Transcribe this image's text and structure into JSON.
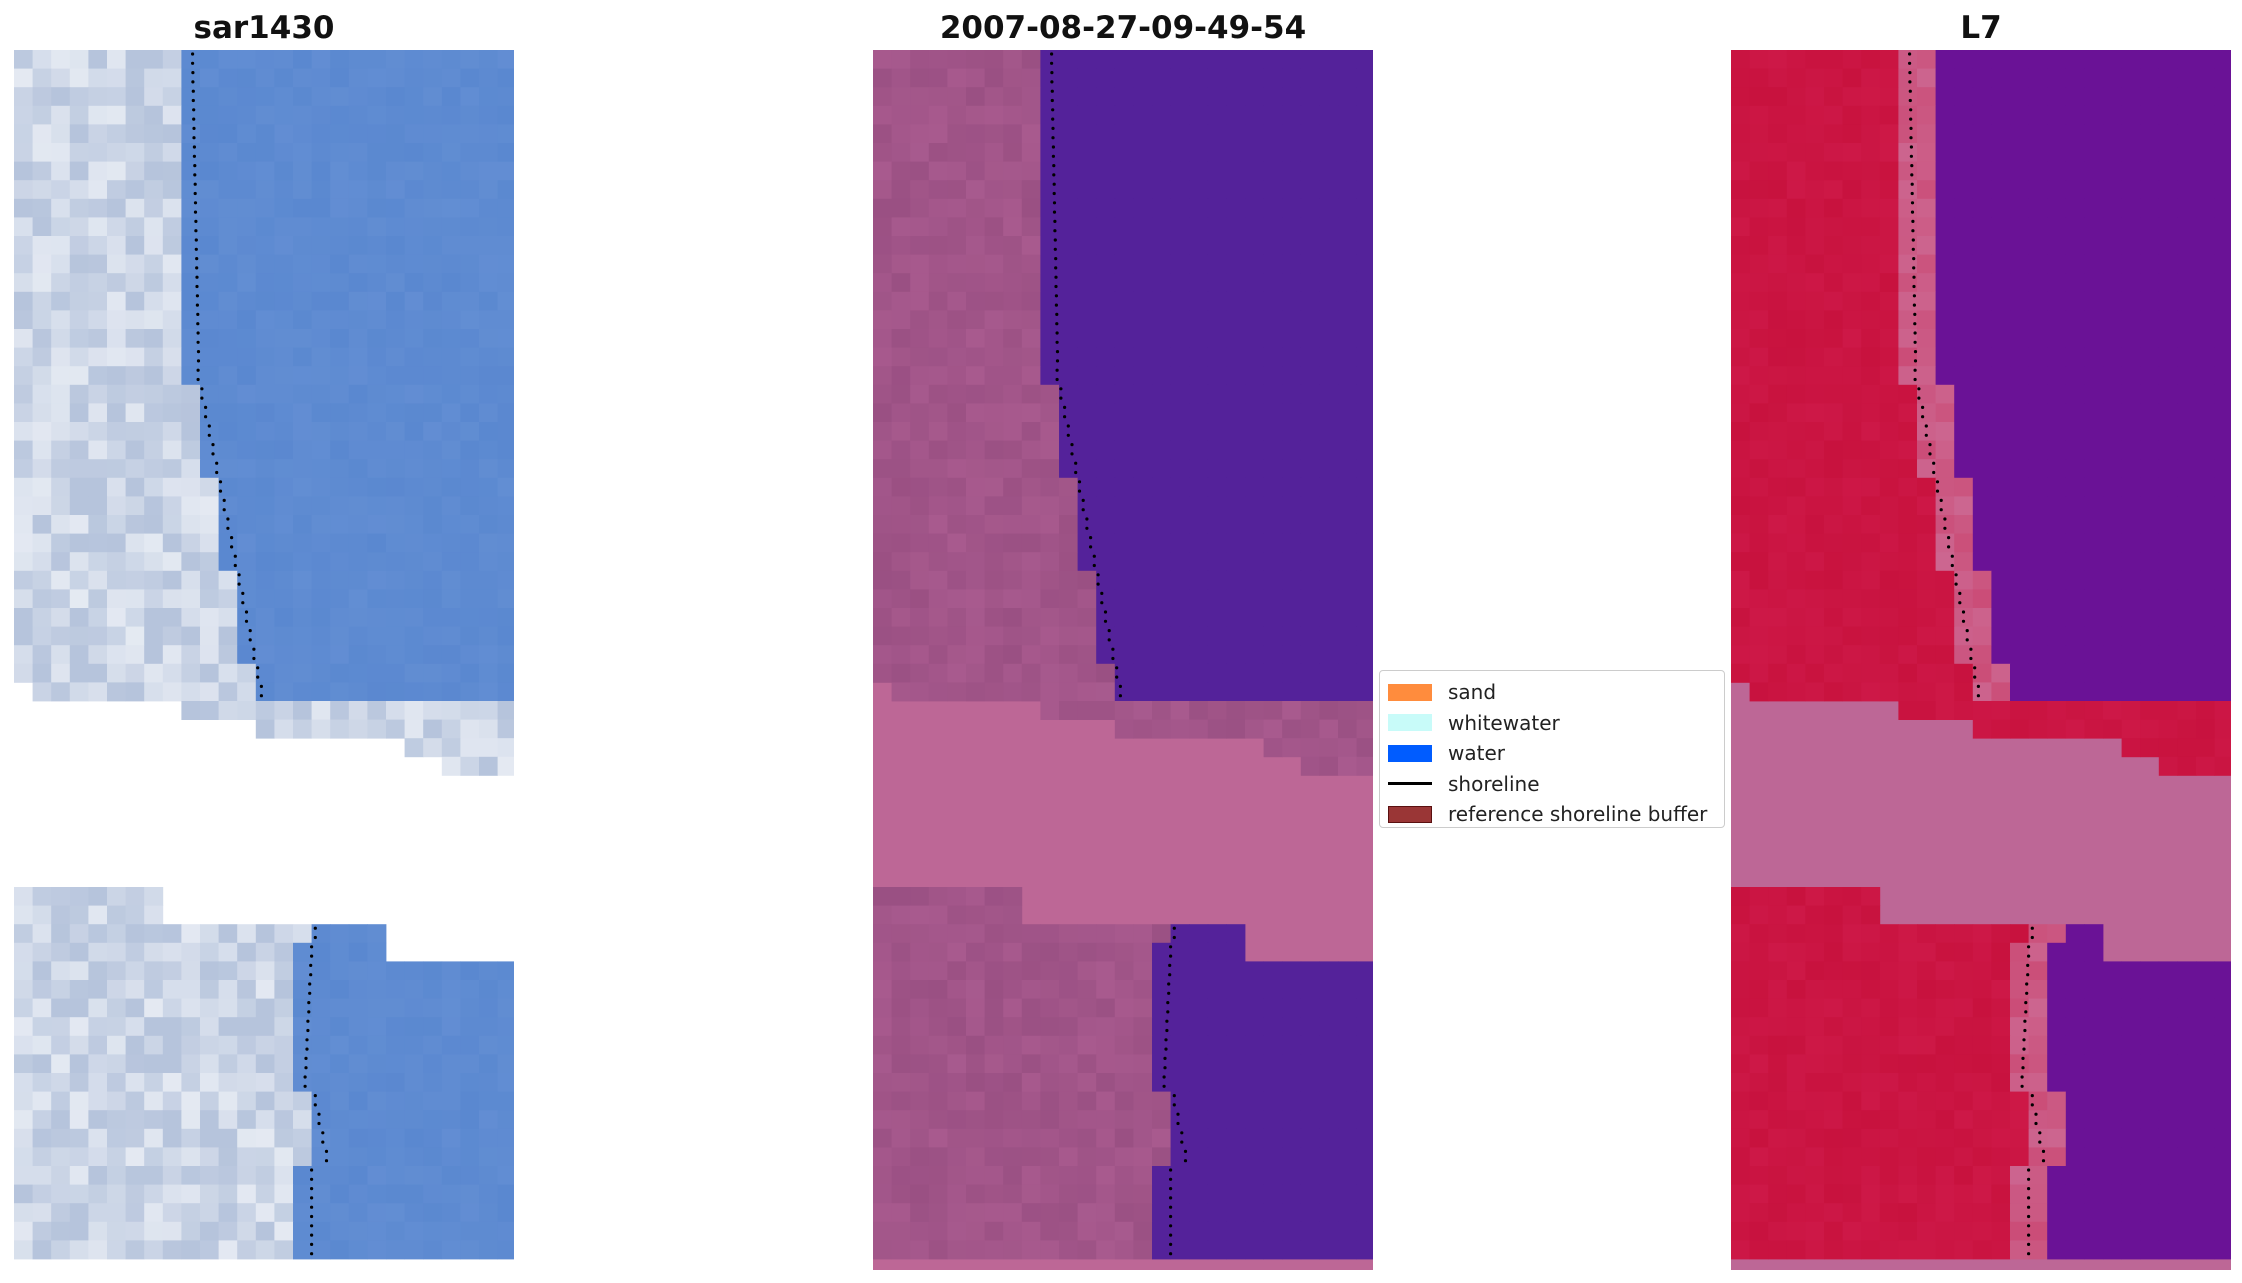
{
  "panels": [
    {
      "title": "sar1430",
      "style": "rgb"
    },
    {
      "title": "2007-08-27-09-49-54",
      "style": "class"
    },
    {
      "title": "L7",
      "style": "index"
    }
  ],
  "legend": {
    "items": [
      {
        "label": "sand",
        "kind": "patch",
        "color": "#ff8c3d"
      },
      {
        "label": "whitewater",
        "kind": "patch",
        "color": "#c8fbf9"
      },
      {
        "label": "water",
        "kind": "patch",
        "color": "#005cff"
      },
      {
        "label": "shoreline",
        "kind": "line",
        "color": "#000000"
      },
      {
        "label": "reference shoreline buffer",
        "kind": "patch",
        "color": "#9a3636",
        "edge": "#5a1010"
      }
    ]
  },
  "colors": {
    "nodata_fill": "#bd6796",
    "class_land": "#a85a8e",
    "class_water": "#54229a",
    "index_land": "#c8123e",
    "index_water": "#6a1296",
    "index_transition": "#cc6690",
    "rgb_land": "#b6c4dc",
    "rgb_water": "#5a88d0"
  },
  "shoreline_shape_note": ""
}
